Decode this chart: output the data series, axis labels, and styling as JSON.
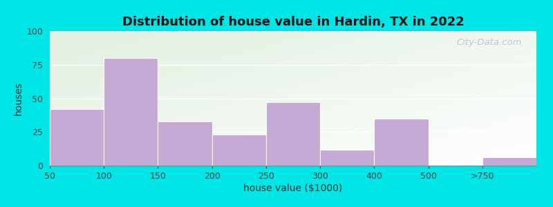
{
  "title": "Distribution of house value in Hardin, TX in 2022",
  "xlabel": "house value ($1000)",
  "ylabel": "houses",
  "tick_labels": [
    "50",
    "100",
    "150",
    "200",
    "250",
    "300",
    "400",
    "500",
    ">750"
  ],
  "bar_values": [
    42,
    80,
    33,
    23,
    47,
    12,
    35,
    0,
    6
  ],
  "bar_lefts": [
    0,
    1,
    2,
    3,
    4,
    5,
    6,
    7,
    8
  ],
  "bar_widths": [
    1,
    1,
    1,
    1,
    1,
    1,
    1,
    1,
    1
  ],
  "bar_color": "#c4aad4",
  "bar_edgecolor": "#ffffff",
  "ylim": [
    0,
    100
  ],
  "yticks": [
    0,
    25,
    50,
    75,
    100
  ],
  "xlim": [
    0,
    9
  ],
  "xtick_positions": [
    0,
    1,
    2,
    3,
    4,
    5,
    6,
    7,
    8
  ],
  "background_outer": "#00e5e5",
  "background_plot_color1": "#d8efd0",
  "background_plot_color2": "#f5f5f0",
  "grid_color": "#ffffff",
  "title_fontsize": 13,
  "axis_label_fontsize": 10,
  "tick_fontsize": 9,
  "watermark_text": "City-Data.com"
}
